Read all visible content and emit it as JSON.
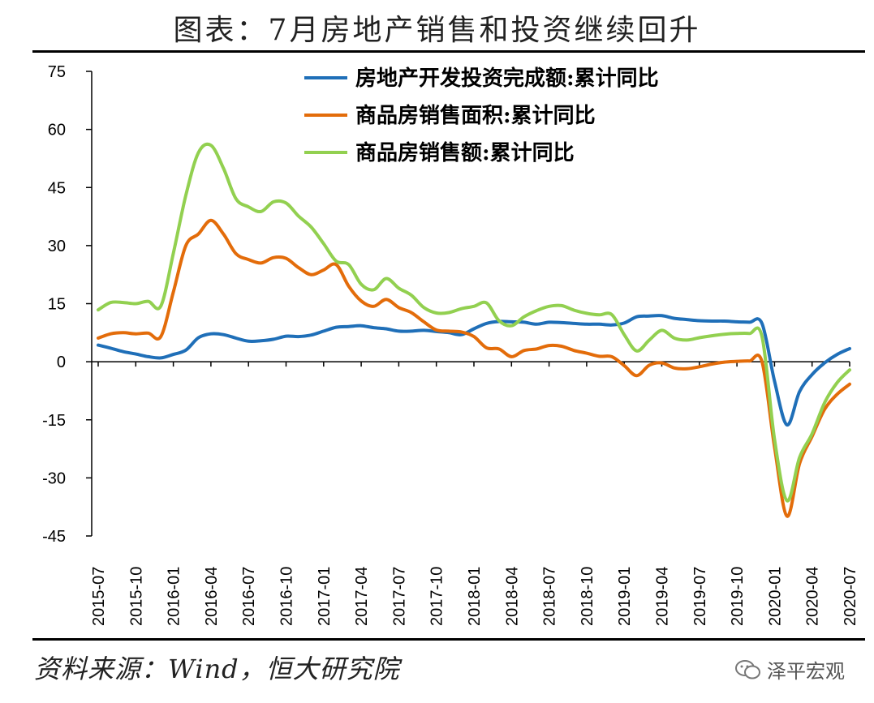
{
  "title": "图表：7月房地产销售和投资继续回升",
  "source": "资料来源：Wind，恒大研究院",
  "brand": "泽平宏观",
  "chart_data": {
    "type": "line",
    "title": "图表：7月房地产销售和投资继续回升",
    "ylim": [
      -45,
      75
    ],
    "yticks": [
      75,
      60,
      45,
      30,
      15,
      0,
      -15,
      -30,
      -45
    ],
    "xticks": [
      "2015-07",
      "2015-10",
      "2016-01",
      "2016-04",
      "2016-07",
      "2016-10",
      "2017-01",
      "2017-04",
      "2017-07",
      "2017-10",
      "2018-01",
      "2018-04",
      "2018-07",
      "2018-10",
      "2019-01",
      "2019-04",
      "2019-07",
      "2019-10",
      "2020-01",
      "2020-04",
      "2020-07"
    ],
    "x_start": "2015-07",
    "x_end": "2020-07",
    "legend_position": "top-center",
    "grid": false,
    "series": [
      {
        "name": "房地产开发投资完成额:累计同比",
        "color": "#1f6fb8",
        "points": [
          [
            "2015-07",
            4.3
          ],
          [
            "2015-08",
            3.5
          ],
          [
            "2015-09",
            2.6
          ],
          [
            "2015-10",
            2.0
          ],
          [
            "2015-11",
            1.3
          ],
          [
            "2015-12",
            1.0
          ],
          [
            "2016-01",
            1.9
          ],
          [
            "2016-02",
            3.0
          ],
          [
            "2016-03",
            6.2
          ],
          [
            "2016-04",
            7.2
          ],
          [
            "2016-05",
            7.0
          ],
          [
            "2016-06",
            6.1
          ],
          [
            "2016-07",
            5.3
          ],
          [
            "2016-08",
            5.4
          ],
          [
            "2016-09",
            5.8
          ],
          [
            "2016-10",
            6.6
          ],
          [
            "2016-11",
            6.5
          ],
          [
            "2016-12",
            6.9
          ],
          [
            "2017-01",
            7.9
          ],
          [
            "2017-02",
            8.9
          ],
          [
            "2017-03",
            9.1
          ],
          [
            "2017-04",
            9.3
          ],
          [
            "2017-05",
            8.8
          ],
          [
            "2017-06",
            8.5
          ],
          [
            "2017-07",
            7.9
          ],
          [
            "2017-08",
            7.9
          ],
          [
            "2017-09",
            8.1
          ],
          [
            "2017-10",
            7.8
          ],
          [
            "2017-11",
            7.5
          ],
          [
            "2017-12",
            7.0
          ],
          [
            "2018-01",
            8.5
          ],
          [
            "2018-02",
            9.9
          ],
          [
            "2018-03",
            10.4
          ],
          [
            "2018-04",
            10.3
          ],
          [
            "2018-05",
            10.2
          ],
          [
            "2018-06",
            9.7
          ],
          [
            "2018-07",
            10.2
          ],
          [
            "2018-08",
            10.1
          ],
          [
            "2018-09",
            9.9
          ],
          [
            "2018-10",
            9.7
          ],
          [
            "2018-11",
            9.7
          ],
          [
            "2018-12",
            9.5
          ],
          [
            "2019-01",
            10.0
          ],
          [
            "2019-02",
            11.6
          ],
          [
            "2019-03",
            11.8
          ],
          [
            "2019-04",
            11.9
          ],
          [
            "2019-05",
            11.2
          ],
          [
            "2019-06",
            10.9
          ],
          [
            "2019-07",
            10.6
          ],
          [
            "2019-08",
            10.5
          ],
          [
            "2019-09",
            10.5
          ],
          [
            "2019-10",
            10.3
          ],
          [
            "2019-11",
            10.2
          ],
          [
            "2019-12",
            9.9
          ],
          [
            "2020-01",
            -5.0
          ],
          [
            "2020-02",
            -16.3
          ],
          [
            "2020-03",
            -7.7
          ],
          [
            "2020-04",
            -3.3
          ],
          [
            "2020-05",
            -0.3
          ],
          [
            "2020-06",
            1.9
          ],
          [
            "2020-07",
            3.4
          ]
        ]
      },
      {
        "name": "商品房销售面积:累计同比",
        "color": "#e36c0a",
        "points": [
          [
            "2015-07",
            6.1
          ],
          [
            "2015-08",
            7.2
          ],
          [
            "2015-09",
            7.5
          ],
          [
            "2015-10",
            7.2
          ],
          [
            "2015-11",
            7.4
          ],
          [
            "2015-12",
            6.5
          ],
          [
            "2016-01",
            18.0
          ],
          [
            "2016-02",
            30.0
          ],
          [
            "2016-03",
            33.0
          ],
          [
            "2016-04",
            36.5
          ],
          [
            "2016-05",
            33.0
          ],
          [
            "2016-06",
            27.9
          ],
          [
            "2016-07",
            26.4
          ],
          [
            "2016-08",
            25.5
          ],
          [
            "2016-09",
            26.9
          ],
          [
            "2016-10",
            26.7
          ],
          [
            "2016-11",
            24.3
          ],
          [
            "2016-12",
            22.5
          ],
          [
            "2017-01",
            23.7
          ],
          [
            "2017-02",
            25.1
          ],
          [
            "2017-03",
            19.5
          ],
          [
            "2017-04",
            15.7
          ],
          [
            "2017-05",
            14.3
          ],
          [
            "2017-06",
            16.1
          ],
          [
            "2017-07",
            14.0
          ],
          [
            "2017-08",
            12.7
          ],
          [
            "2017-09",
            10.3
          ],
          [
            "2017-10",
            8.2
          ],
          [
            "2017-11",
            7.9
          ],
          [
            "2017-12",
            7.7
          ],
          [
            "2018-01",
            6.5
          ],
          [
            "2018-02",
            3.6
          ],
          [
            "2018-03",
            3.3
          ],
          [
            "2018-04",
            1.3
          ],
          [
            "2018-05",
            2.9
          ],
          [
            "2018-06",
            3.3
          ],
          [
            "2018-07",
            4.2
          ],
          [
            "2018-08",
            4.0
          ],
          [
            "2018-09",
            2.9
          ],
          [
            "2018-10",
            2.2
          ],
          [
            "2018-11",
            1.4
          ],
          [
            "2018-12",
            1.3
          ],
          [
            "2019-01",
            -1.0
          ],
          [
            "2019-02",
            -3.6
          ],
          [
            "2019-03",
            -0.9
          ],
          [
            "2019-04",
            -0.3
          ],
          [
            "2019-05",
            -1.6
          ],
          [
            "2019-06",
            -1.8
          ],
          [
            "2019-07",
            -1.3
          ],
          [
            "2019-08",
            -0.6
          ],
          [
            "2019-09",
            -0.1
          ],
          [
            "2019-10",
            0.1
          ],
          [
            "2019-11",
            0.2
          ],
          [
            "2019-12",
            0.0
          ],
          [
            "2020-01",
            -22.0
          ],
          [
            "2020-02",
            -39.9
          ],
          [
            "2020-03",
            -26.3
          ],
          [
            "2020-04",
            -19.3
          ],
          [
            "2020-05",
            -12.3
          ],
          [
            "2020-06",
            -8.4
          ],
          [
            "2020-07",
            -5.8
          ]
        ]
      },
      {
        "name": "商品房销售额:累计同比",
        "color": "#92d050",
        "points": [
          [
            "2015-07",
            13.4
          ],
          [
            "2015-08",
            15.3
          ],
          [
            "2015-09",
            15.3
          ],
          [
            "2015-10",
            15.0
          ],
          [
            "2015-11",
            15.6
          ],
          [
            "2015-12",
            14.4
          ],
          [
            "2016-01",
            28.0
          ],
          [
            "2016-02",
            43.0
          ],
          [
            "2016-03",
            54.0
          ],
          [
            "2016-04",
            55.9
          ],
          [
            "2016-05",
            50.0
          ],
          [
            "2016-06",
            42.1
          ],
          [
            "2016-07",
            40.0
          ],
          [
            "2016-08",
            38.8
          ],
          [
            "2016-09",
            41.3
          ],
          [
            "2016-10",
            41.0
          ],
          [
            "2016-11",
            37.6
          ],
          [
            "2016-12",
            34.8
          ],
          [
            "2017-01",
            30.5
          ],
          [
            "2017-02",
            26.0
          ],
          [
            "2017-03",
            25.1
          ],
          [
            "2017-04",
            20.0
          ],
          [
            "2017-05",
            18.6
          ],
          [
            "2017-06",
            21.5
          ],
          [
            "2017-07",
            19.0
          ],
          [
            "2017-08",
            17.2
          ],
          [
            "2017-09",
            14.0
          ],
          [
            "2017-10",
            12.6
          ],
          [
            "2017-11",
            12.7
          ],
          [
            "2017-12",
            13.7
          ],
          [
            "2018-01",
            14.3
          ],
          [
            "2018-02",
            15.2
          ],
          [
            "2018-03",
            10.6
          ],
          [
            "2018-04",
            9.3
          ],
          [
            "2018-05",
            11.6
          ],
          [
            "2018-06",
            13.2
          ],
          [
            "2018-07",
            14.3
          ],
          [
            "2018-08",
            14.5
          ],
          [
            "2018-09",
            13.3
          ],
          [
            "2018-10",
            12.5
          ],
          [
            "2018-11",
            12.1
          ],
          [
            "2018-12",
            12.2
          ],
          [
            "2019-01",
            7.0
          ],
          [
            "2019-02",
            2.8
          ],
          [
            "2019-03",
            5.6
          ],
          [
            "2019-04",
            8.1
          ],
          [
            "2019-05",
            6.1
          ],
          [
            "2019-06",
            5.6
          ],
          [
            "2019-07",
            6.2
          ],
          [
            "2019-08",
            6.7
          ],
          [
            "2019-09",
            7.1
          ],
          [
            "2019-10",
            7.3
          ],
          [
            "2019-11",
            7.3
          ],
          [
            "2019-12",
            6.5
          ],
          [
            "2020-01",
            -20.0
          ],
          [
            "2020-02",
            -35.9
          ],
          [
            "2020-03",
            -24.7
          ],
          [
            "2020-04",
            -18.6
          ],
          [
            "2020-05",
            -10.6
          ],
          [
            "2020-06",
            -5.4
          ],
          [
            "2020-07",
            -2.1
          ]
        ]
      }
    ]
  }
}
